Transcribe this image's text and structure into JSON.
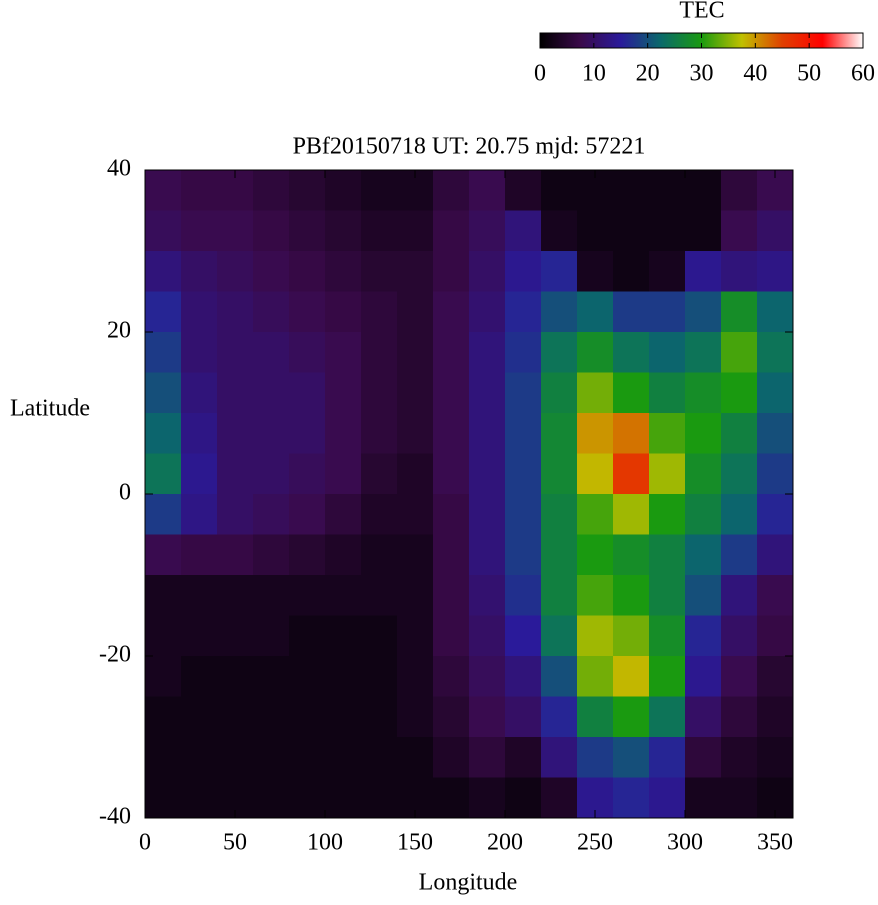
{
  "chart_data": {
    "type": "heatmap",
    "title": "PBf20150718  UT: 20.75  mjd: 57221",
    "xlabel": "Longitude",
    "ylabel": "Latitude",
    "colorbar_label": "TEC",
    "x": [
      10,
      30,
      50,
      70,
      90,
      110,
      130,
      150,
      170,
      190,
      210,
      230,
      250,
      270,
      290,
      310,
      330,
      350
    ],
    "y": [
      37.5,
      32.5,
      27.5,
      22.5,
      17.5,
      12.5,
      7.5,
      2.5,
      -2.5,
      -7.5,
      -12.5,
      -17.5,
      -22.5,
      -27.5,
      -32.5,
      -37.5
    ],
    "values": [
      [
        8,
        7,
        7,
        6,
        5,
        4,
        3,
        3,
        6,
        8,
        4,
        2,
        2,
        2,
        2,
        2,
        6,
        8
      ],
      [
        9,
        8,
        8,
        7,
        6,
        5,
        4,
        4,
        7,
        9,
        12,
        3,
        2,
        2,
        2,
        2,
        8,
        10
      ],
      [
        12,
        10,
        9,
        8,
        7,
        6,
        5,
        5,
        7,
        10,
        14,
        16,
        3,
        2,
        3,
        14,
        12,
        13
      ],
      [
        16,
        11,
        10,
        9,
        8,
        7,
        6,
        5,
        8,
        11,
        16,
        20,
        22,
        18,
        18,
        20,
        28,
        22
      ],
      [
        18,
        11,
        10,
        10,
        9,
        8,
        6,
        5,
        8,
        12,
        17,
        24,
        28,
        24,
        22,
        24,
        32,
        24
      ],
      [
        20,
        12,
        10,
        10,
        10,
        8,
        6,
        5,
        8,
        12,
        18,
        26,
        34,
        30,
        26,
        28,
        30,
        22
      ],
      [
        22,
        13,
        10,
        10,
        10,
        8,
        6,
        5,
        8,
        12,
        18,
        27,
        40,
        42,
        32,
        30,
        26,
        20
      ],
      [
        24,
        14,
        10,
        10,
        9,
        8,
        5,
        4,
        8,
        12,
        18,
        27,
        38,
        46,
        36,
        28,
        24,
        18
      ],
      [
        18,
        13,
        10,
        9,
        8,
        6,
        4,
        4,
        7,
        12,
        18,
        26,
        32,
        36,
        30,
        26,
        22,
        16
      ],
      [
        8,
        7,
        7,
        6,
        5,
        4,
        3,
        3,
        7,
        12,
        18,
        26,
        30,
        28,
        26,
        22,
        18,
        12
      ],
      [
        3,
        3,
        3,
        3,
        3,
        3,
        3,
        3,
        7,
        11,
        17,
        26,
        32,
        30,
        26,
        20,
        12,
        8
      ],
      [
        3,
        3,
        3,
        3,
        2,
        2,
        2,
        3,
        7,
        10,
        15,
        24,
        36,
        34,
        28,
        16,
        10,
        7
      ],
      [
        3,
        2,
        2,
        2,
        2,
        2,
        2,
        3,
        6,
        9,
        12,
        20,
        34,
        38,
        30,
        14,
        8,
        5
      ],
      [
        2,
        2,
        2,
        2,
        2,
        2,
        2,
        3,
        5,
        8,
        10,
        16,
        26,
        30,
        24,
        10,
        6,
        4
      ],
      [
        2,
        2,
        2,
        2,
        2,
        2,
        2,
        2,
        4,
        6,
        4,
        12,
        18,
        20,
        16,
        6,
        4,
        3
      ],
      [
        2,
        2,
        2,
        2,
        2,
        2,
        2,
        2,
        2,
        3,
        2,
        4,
        14,
        16,
        14,
        3,
        3,
        2
      ]
    ],
    "xlim": [
      0,
      360
    ],
    "ylim": [
      -40,
      40
    ],
    "xticks": [
      0,
      50,
      100,
      150,
      200,
      250,
      300,
      350
    ],
    "yticks": [
      -40,
      -20,
      0,
      20,
      40
    ],
    "clim": [
      0,
      60
    ],
    "cticks": [
      0,
      10,
      20,
      30,
      40,
      50,
      60
    ],
    "colormap": [
      "#000000",
      "#3a0a4a",
      "#2a1a9a",
      "#0a6a6a",
      "#1a9a10",
      "#c0c000",
      "#e04000",
      "#ff0000",
      "#ffffff"
    ]
  }
}
